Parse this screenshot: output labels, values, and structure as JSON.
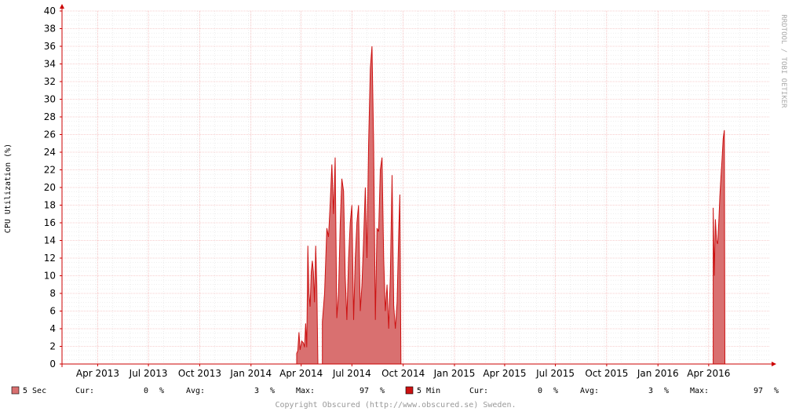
{
  "chart_data": {
    "type": "area",
    "title": "",
    "ylabel": "CPU Utilization (%)",
    "xlabel": "",
    "ylim": [
      0,
      40
    ],
    "yticks": [
      0,
      2,
      4,
      6,
      8,
      10,
      12,
      14,
      16,
      18,
      20,
      22,
      24,
      26,
      28,
      30,
      32,
      34,
      36,
      38,
      40
    ],
    "xlim": [
      "2013-01-27",
      "2016-07-20"
    ],
    "xticks": [
      {
        "date": "2013-04-01",
        "label": "Apr 2013"
      },
      {
        "date": "2013-07-01",
        "label": "Jul 2013"
      },
      {
        "date": "2013-10-01",
        "label": "Oct 2013"
      },
      {
        "date": "2014-01-01",
        "label": "Jan 2014"
      },
      {
        "date": "2014-04-01",
        "label": "Apr 2014"
      },
      {
        "date": "2014-07-01",
        "label": "Jul 2014"
      },
      {
        "date": "2014-10-01",
        "label": "Oct 2014"
      },
      {
        "date": "2015-01-01",
        "label": "Jan 2015"
      },
      {
        "date": "2015-04-01",
        "label": "Apr 2015"
      },
      {
        "date": "2015-07-01",
        "label": "Jul 2015"
      },
      {
        "date": "2015-10-01",
        "label": "Oct 2015"
      },
      {
        "date": "2016-01-01",
        "label": "Jan 2016"
      },
      {
        "date": "2016-04-01",
        "label": "Apr 2016"
      }
    ],
    "grid": true,
    "series": [
      {
        "name": "5 Sec",
        "color": "#d97070",
        "segments": [
          [
            [
              "2014-03-24",
              0
            ],
            [
              "2014-03-24",
              1.2
            ],
            [
              "2014-03-26",
              1.5
            ],
            [
              "2014-03-28",
              3.6
            ],
            [
              "2014-03-30",
              1.6
            ],
            [
              "2014-04-02",
              2.6
            ],
            [
              "2014-04-05",
              2.4
            ],
            [
              "2014-04-07",
              1.9
            ],
            [
              "2014-04-09",
              4.6
            ],
            [
              "2014-04-11",
              1.9
            ],
            [
              "2014-04-13",
              13.4
            ],
            [
              "2014-04-15",
              8.0
            ],
            [
              "2014-04-17",
              6.5
            ],
            [
              "2014-04-19",
              10.4
            ],
            [
              "2014-04-21",
              11.7
            ],
            [
              "2014-04-23",
              10.4
            ],
            [
              "2014-04-25",
              7.0
            ],
            [
              "2014-04-27",
              13.4
            ],
            [
              "2014-04-29",
              9.0
            ],
            [
              "2014-05-01",
              0
            ]
          ],
          [
            [
              "2014-05-09",
              0
            ],
            [
              "2014-05-09",
              4.8
            ],
            [
              "2014-05-13",
              8.0
            ],
            [
              "2014-05-17",
              15.4
            ],
            [
              "2014-05-20",
              14.4
            ],
            [
              "2014-05-23",
              18.0
            ],
            [
              "2014-05-26",
              22.6
            ],
            [
              "2014-05-29",
              17.0
            ],
            [
              "2014-06-01",
              23.4
            ],
            [
              "2014-06-04",
              5.2
            ],
            [
              "2014-06-07",
              8.0
            ],
            [
              "2014-06-10",
              15.8
            ],
            [
              "2014-06-13",
              21.0
            ],
            [
              "2014-06-16",
              19.6
            ],
            [
              "2014-06-19",
              10.0
            ],
            [
              "2014-06-22",
              5.0
            ],
            [
              "2014-06-25",
              12.0
            ],
            [
              "2014-06-28",
              16.0
            ],
            [
              "2014-07-01",
              18.0
            ],
            [
              "2014-07-04",
              5.0
            ],
            [
              "2014-07-07",
              12.0
            ],
            [
              "2014-07-10",
              16.0
            ],
            [
              "2014-07-13",
              18.0
            ],
            [
              "2014-07-16",
              6.0
            ],
            [
              "2014-07-19",
              9.0
            ],
            [
              "2014-07-22",
              14.0
            ],
            [
              "2014-07-25",
              20.0
            ],
            [
              "2014-07-28",
              12.0
            ],
            [
              "2014-07-31",
              25.0
            ],
            [
              "2014-08-03",
              33.5
            ],
            [
              "2014-08-06",
              36.0
            ],
            [
              "2014-08-09",
              25.0
            ],
            [
              "2014-08-12",
              5.0
            ],
            [
              "2014-08-15",
              15.4
            ],
            [
              "2014-08-18",
              15.0
            ],
            [
              "2014-08-21",
              22.0
            ],
            [
              "2014-08-24",
              23.4
            ],
            [
              "2014-08-27",
              12.0
            ],
            [
              "2014-08-30",
              6.0
            ],
            [
              "2014-09-02",
              9.0
            ],
            [
              "2014-09-05",
              4.0
            ],
            [
              "2014-09-08",
              10.0
            ],
            [
              "2014-09-11",
              21.4
            ],
            [
              "2014-09-14",
              6.6
            ],
            [
              "2014-09-17",
              4.0
            ],
            [
              "2014-09-20",
              7.0
            ],
            [
              "2014-09-23",
              15.0
            ],
            [
              "2014-09-25",
              19.2
            ],
            [
              "2014-09-27",
              0
            ]
          ],
          [
            [
              "2016-04-09",
              0
            ],
            [
              "2016-04-09",
              17.7
            ],
            [
              "2016-04-11",
              10.0
            ],
            [
              "2016-04-13",
              16.4
            ],
            [
              "2016-04-15",
              14.0
            ],
            [
              "2016-04-17",
              13.6
            ],
            [
              "2016-04-19",
              16.0
            ],
            [
              "2016-04-21",
              19.0
            ],
            [
              "2016-04-23",
              21.2
            ],
            [
              "2016-04-25",
              23.2
            ],
            [
              "2016-04-27",
              25.5
            ],
            [
              "2016-04-29",
              26.5
            ],
            [
              "2016-04-30",
              0
            ]
          ]
        ]
      },
      {
        "name": "5 Min",
        "color": "#cc1111"
      }
    ]
  },
  "legend": {
    "sec": {
      "name": "5 Sec",
      "cur_label": "Cur:",
      "cur": "0",
      "avg_label": "Avg:",
      "avg": "3",
      "max_label": "Max:",
      "max": "97",
      "unit": "%"
    },
    "min": {
      "name": "5 Min",
      "cur_label": "Cur:",
      "cur": "0",
      "avg_label": "Avg:",
      "avg": "3",
      "max_label": "Max:",
      "max": "97",
      "unit": "%"
    }
  },
  "watermark": "RRDTOOL / TOBI OETIKER",
  "footer": "Copyright Obscured (http://www.obscured.se) Sweden."
}
